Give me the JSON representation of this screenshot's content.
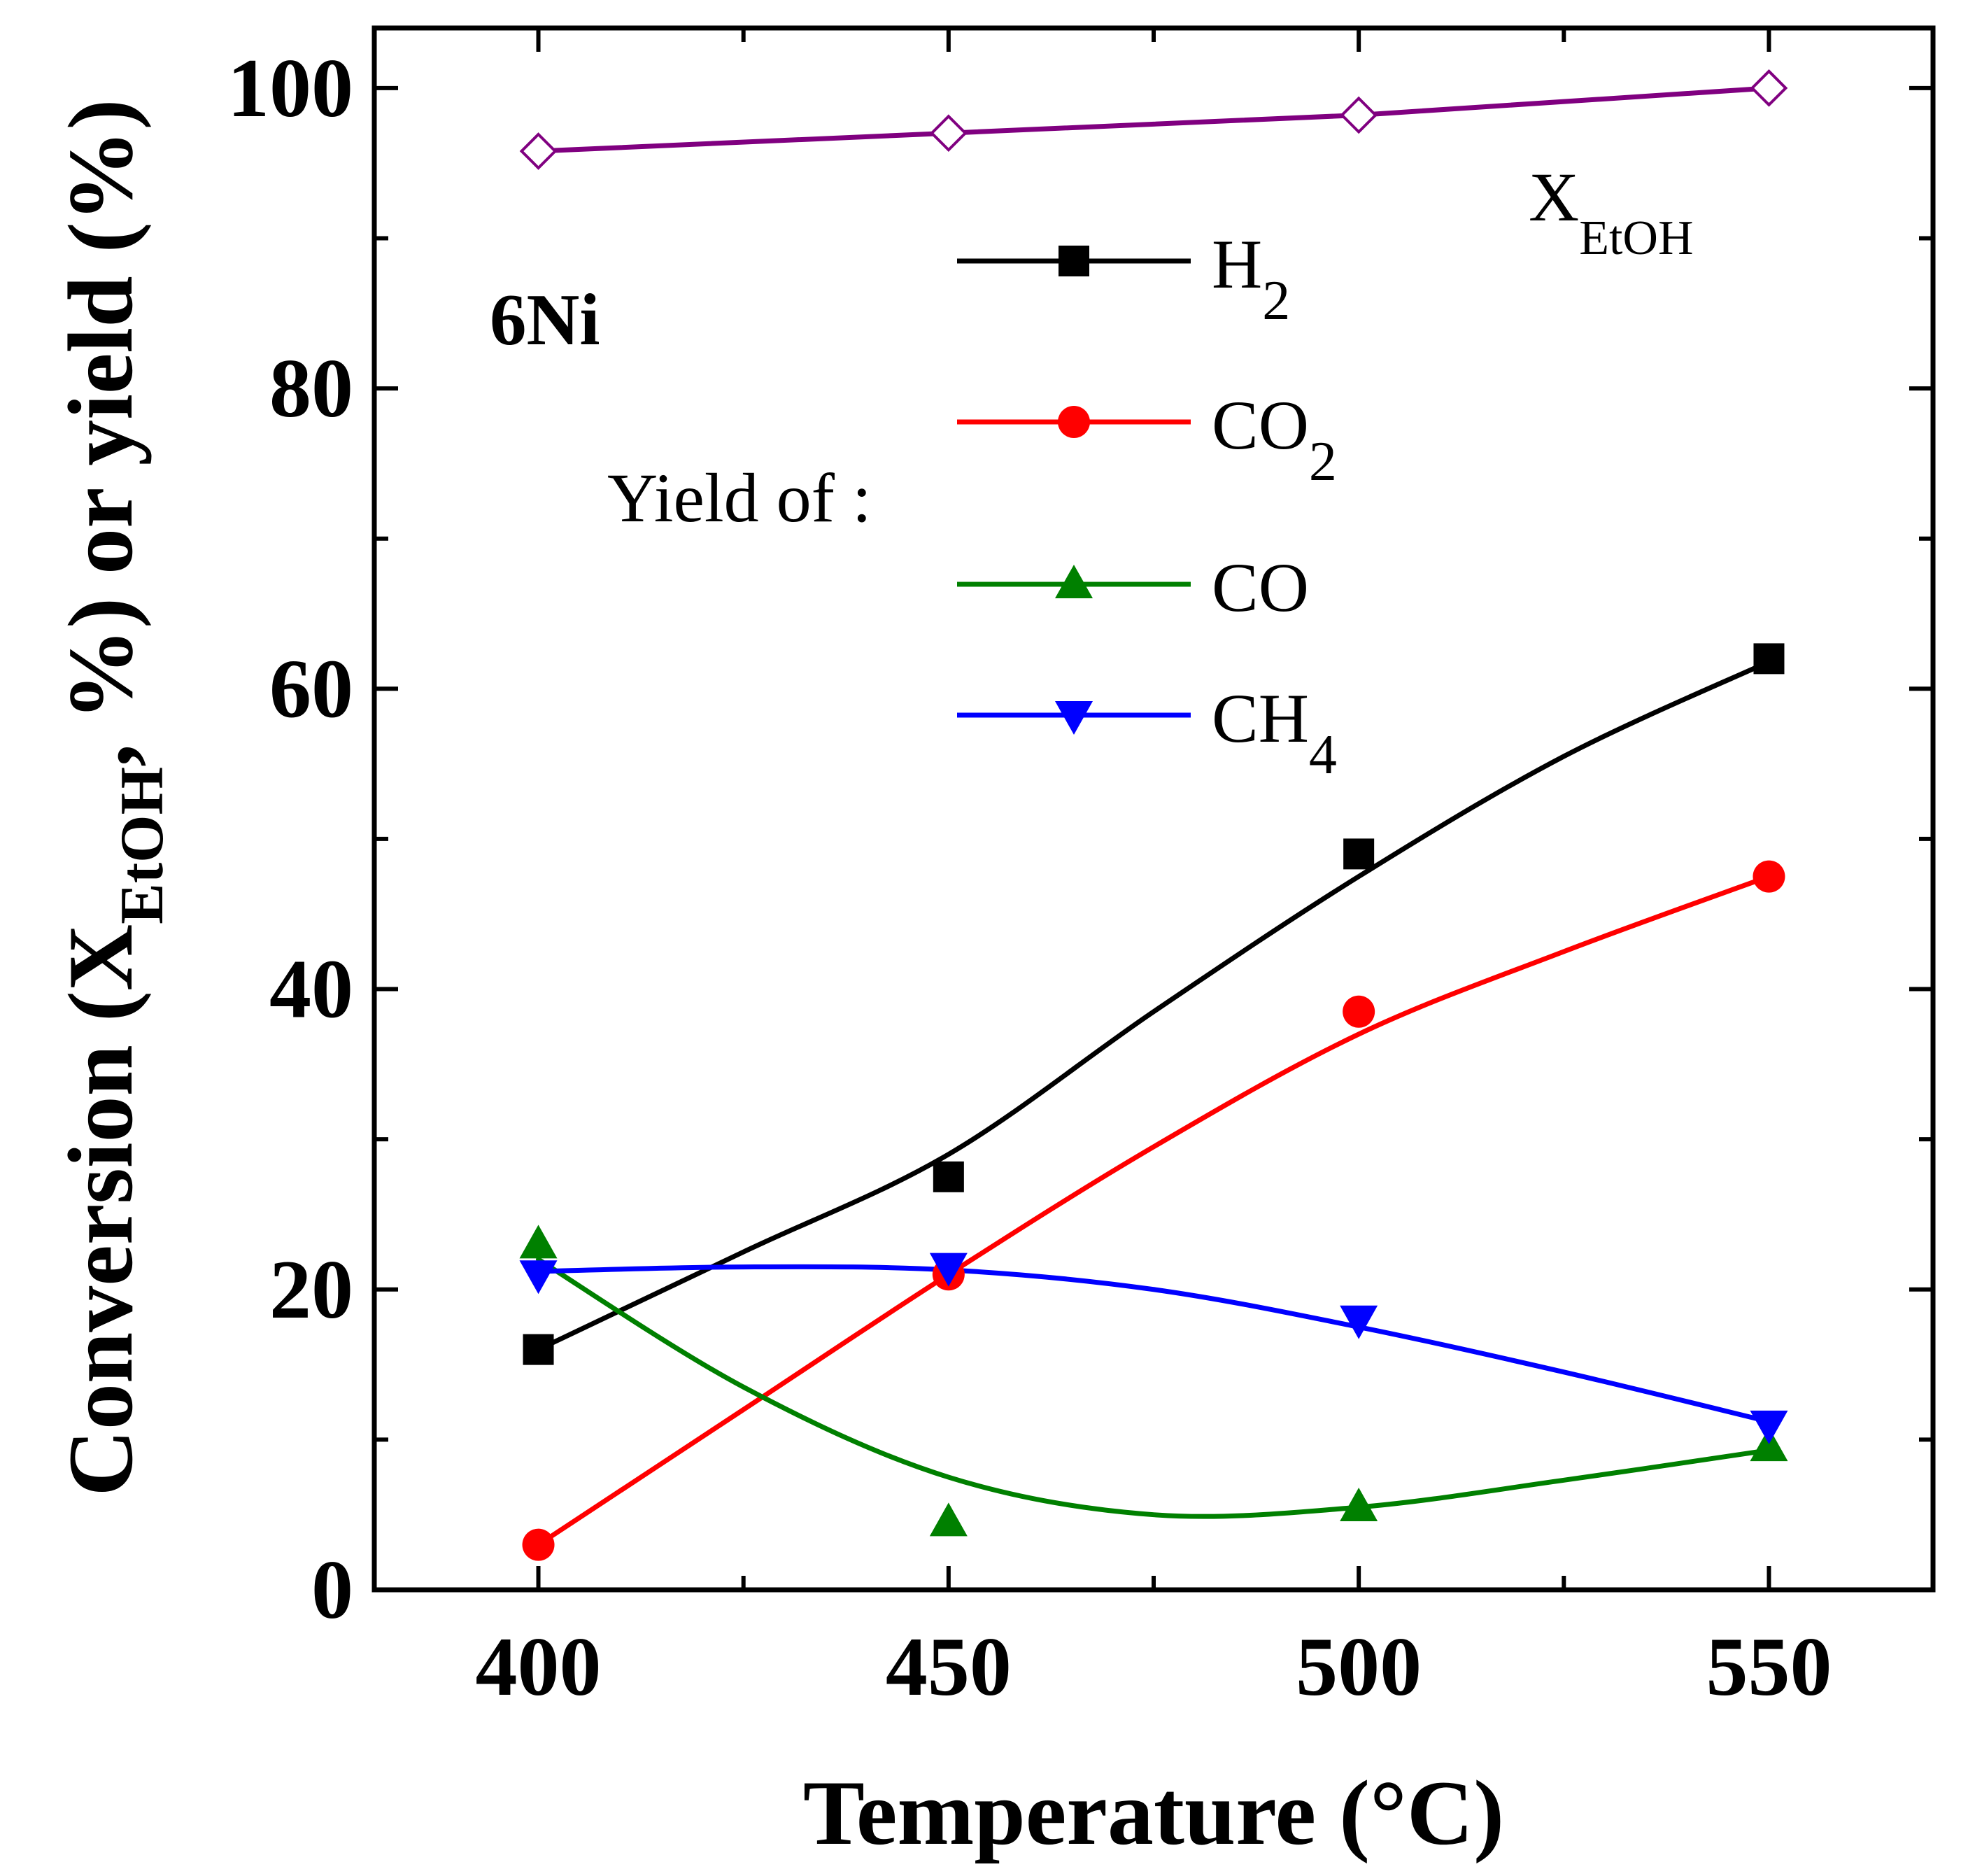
{
  "chart_data": {
    "type": "line",
    "panel_label": "6Ni",
    "legend_title": "Yield of :",
    "xlabel": "Temperature (°C)",
    "ylabel": {
      "prefix": "Conversion (X",
      "sub": "EtOH",
      "suffix": ", %) or yield (%)"
    },
    "x": [
      400,
      450,
      500,
      550
    ],
    "xlim": [
      380,
      570
    ],
    "ylim": [
      0,
      104
    ],
    "x_ticks": [
      400,
      450,
      500,
      550
    ],
    "x_tick_labels": [
      "400",
      "450",
      "500",
      "550"
    ],
    "y_ticks": [
      0,
      20,
      40,
      60,
      80,
      100
    ],
    "y_tick_labels": [
      "0",
      "20",
      "40",
      "60",
      "80",
      "100"
    ],
    "series": [
      {
        "key": "h2",
        "label_main": "H",
        "label_sub": "2",
        "color": "#000000",
        "marker": "square",
        "values": [
          16.0,
          27.5,
          49.0,
          62.0
        ],
        "fit": [
          [
            400,
            16.0
          ],
          [
            425,
            22.5
          ],
          [
            450,
            29.0
          ],
          [
            475,
            38.5
          ],
          [
            500,
            47.5
          ],
          [
            525,
            55.5
          ],
          [
            550,
            61.8
          ]
        ]
      },
      {
        "key": "co2",
        "label_main": "CO",
        "label_sub": "2",
        "color": "#ff0000",
        "marker": "circle",
        "values": [
          3.0,
          21.0,
          38.5,
          47.5
        ],
        "fit": [
          [
            400,
            3.0
          ],
          [
            425,
            12.0
          ],
          [
            450,
            21.0
          ],
          [
            475,
            29.5
          ],
          [
            500,
            37.0
          ],
          [
            525,
            42.5
          ],
          [
            550,
            47.5
          ]
        ]
      },
      {
        "key": "co",
        "label_main": "CO",
        "label_sub": "",
        "color": "#008000",
        "marker": "triangle-up",
        "values": [
          23.0,
          4.5,
          5.5,
          9.5
        ],
        "fit": [
          [
            400,
            22.0
          ],
          [
            425,
            13.5
          ],
          [
            450,
            7.5
          ],
          [
            475,
            5.0
          ],
          [
            500,
            5.5
          ],
          [
            525,
            7.3
          ],
          [
            550,
            9.3
          ]
        ]
      },
      {
        "key": "ch4",
        "label_main": "CH",
        "label_sub": "4",
        "color": "#0000ff",
        "marker": "triangle-down",
        "values": [
          21.0,
          21.5,
          18.0,
          11.0
        ],
        "fit": [
          [
            400,
            21.2
          ],
          [
            425,
            21.5
          ],
          [
            450,
            21.3
          ],
          [
            475,
            20.0
          ],
          [
            500,
            17.5
          ],
          [
            525,
            14.5
          ],
          [
            550,
            11.2
          ]
        ]
      }
    ],
    "conversion": {
      "key": "x_etoh",
      "label_main": "X",
      "label_sub": "EtOH",
      "color": "#800080",
      "marker": "diamond-open",
      "values": [
        95.8,
        97.0,
        98.2,
        100.0
      ]
    }
  }
}
